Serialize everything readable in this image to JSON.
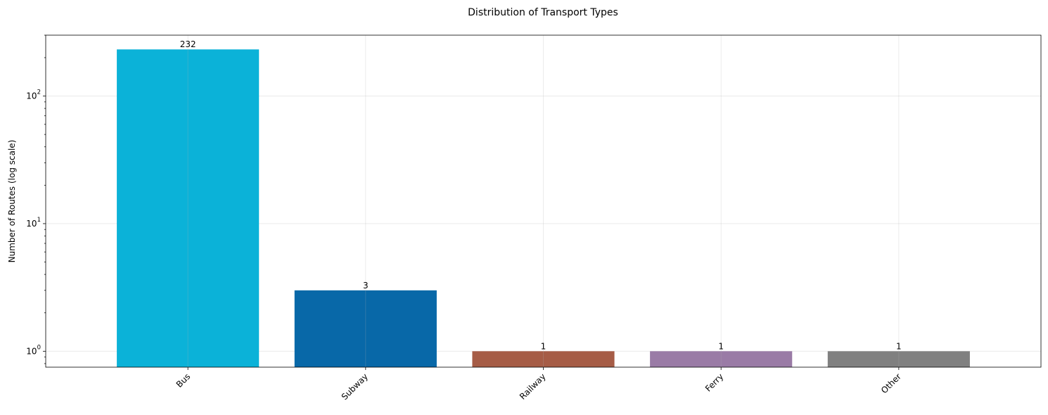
{
  "chart_data": {
    "type": "bar",
    "title": "Distribution of Transport Types",
    "xlabel": "",
    "ylabel": "Number of Routes (log scale)",
    "yscale": "log",
    "ylim": [
      0.75,
      300
    ],
    "grid": true,
    "categories": [
      "Bus",
      "Subway",
      "Railway",
      "Ferry",
      "Other"
    ],
    "values": [
      232,
      3,
      1,
      1,
      1
    ],
    "data_labels": [
      "232",
      "3",
      "1",
      "1",
      "1"
    ],
    "colors": [
      "#0bb2d8",
      "#0868a8",
      "#a65c46",
      "#9a7ba6",
      "#808080"
    ],
    "y_major_ticks": [
      {
        "value": 1,
        "base": "10",
        "exp": "0"
      },
      {
        "value": 10,
        "base": "10",
        "exp": "1"
      },
      {
        "value": 100,
        "base": "10",
        "exp": "2"
      }
    ],
    "x_tick_rotation": "45"
  }
}
